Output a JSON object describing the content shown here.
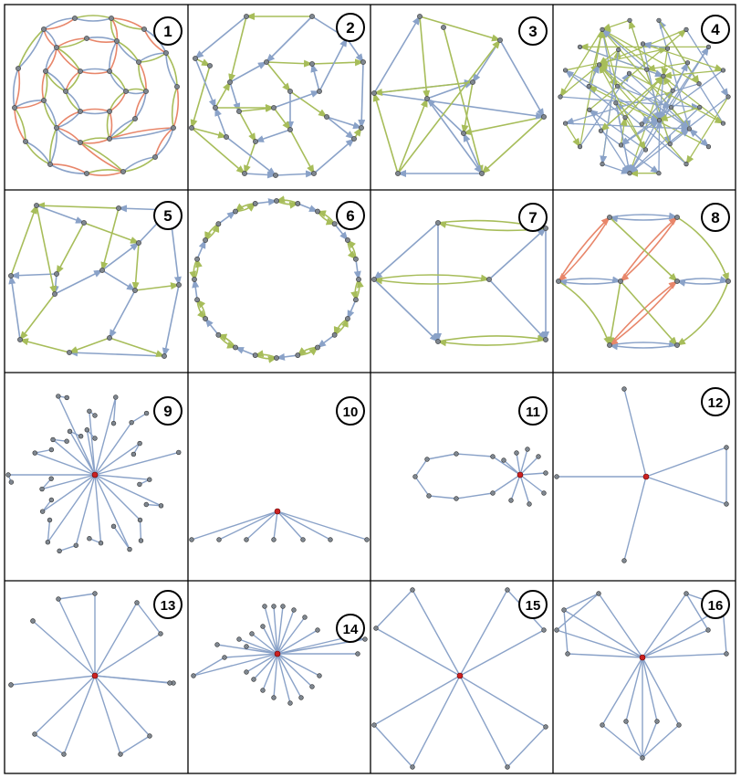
{
  "figure": {
    "panel_labels": [
      "1",
      "2",
      "3",
      "4",
      "5",
      "6",
      "7",
      "8",
      "9",
      "10",
      "11",
      "12",
      "13",
      "14",
      "15",
      "16"
    ]
  },
  "colors": {
    "blue_edge": "#8aa2c8",
    "green_edge": "#a7bd5a",
    "red_edge": "#e8866a",
    "node_fill": "#7f8790",
    "center_node": "#cc2222",
    "grid_line": "#000000",
    "badge_fill": "#ffffff"
  }
}
